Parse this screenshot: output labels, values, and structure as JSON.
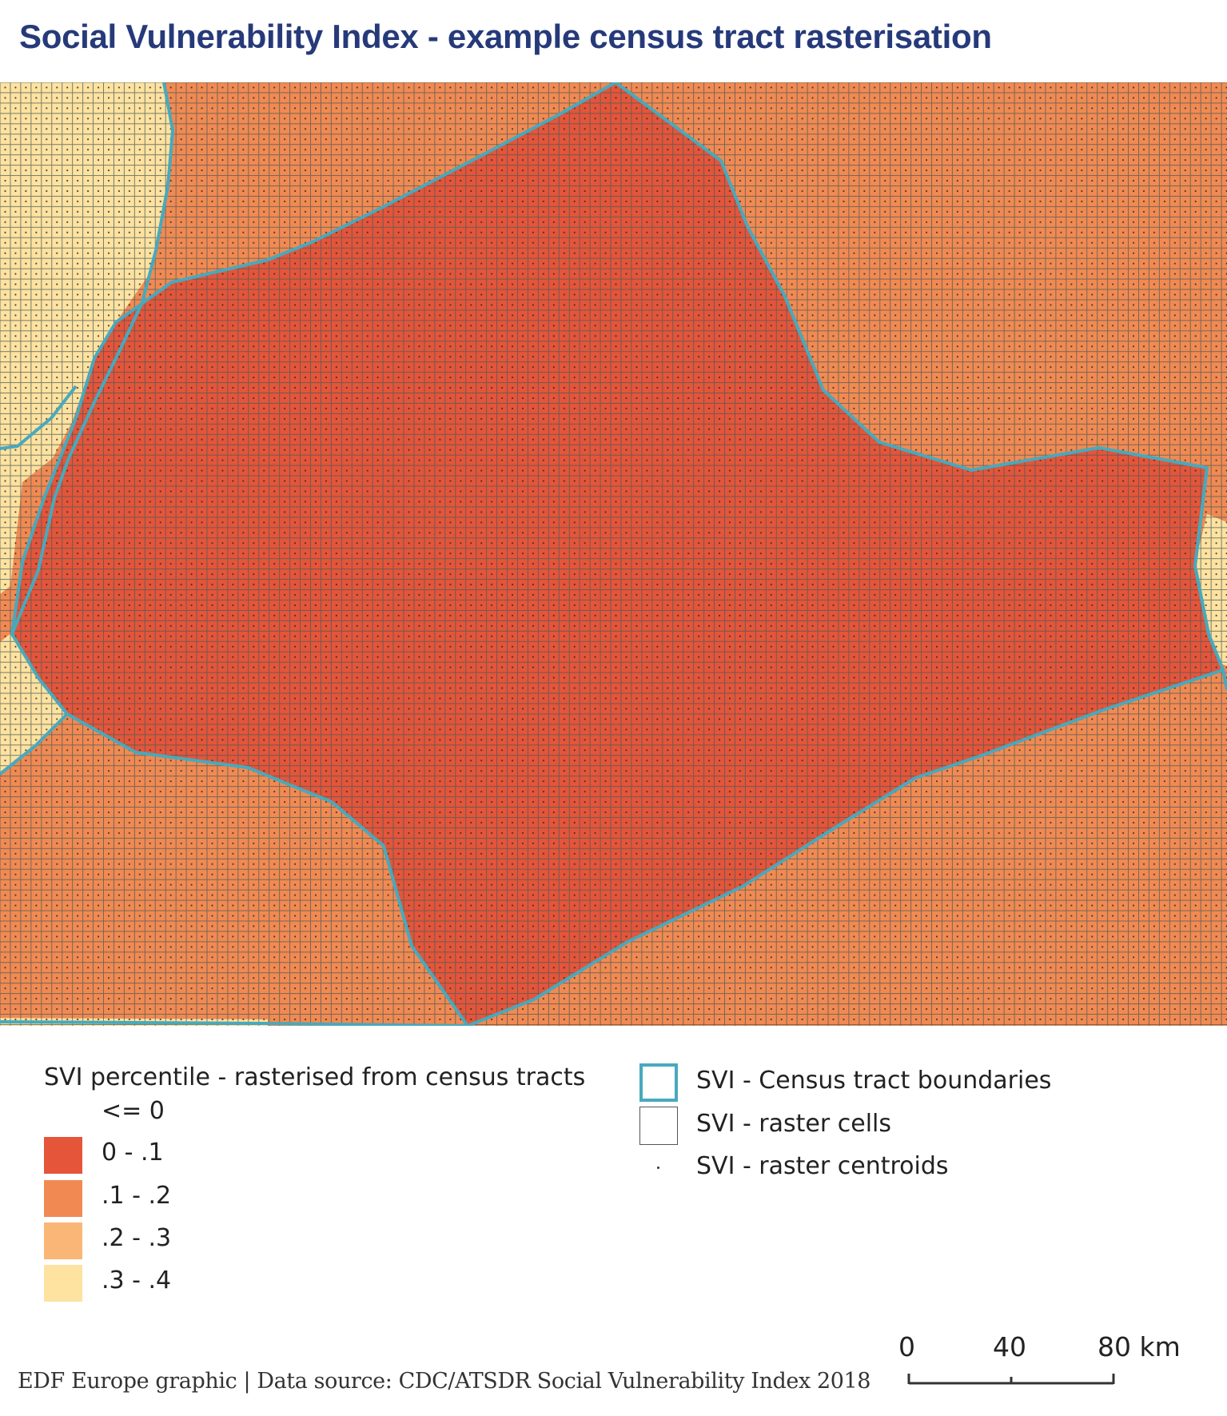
{
  "title": "Social Vulnerability Index - example census tract rasterisation",
  "colors": {
    "class_0_01": "#e4553a",
    "class_01_02": "#f18a52",
    "class_02_03": "#f9b677",
    "class_03_04": "#fde2a0",
    "boundary": "#48a9bd",
    "grid_line": "#4a5a5a",
    "title": "#263a7a"
  },
  "map": {
    "layers": [
      "SVI percentile raster",
      "SVI raster cells grid",
      "SVI raster centroids",
      "SVI census tract boundaries"
    ]
  },
  "legend": {
    "title": "SVI percentile - rasterised from census tracts",
    "first_entry": "<= 0",
    "classes": [
      {
        "label": "0 - .1",
        "color": "#e4553a"
      },
      {
        "label": ".1 - .2",
        "color": "#f18a52"
      },
      {
        "label": ".2 - .3",
        "color": "#f9b677"
      },
      {
        "label": ".3 - .4",
        "color": "#fde2a0"
      }
    ]
  },
  "layers_legend": [
    {
      "label": "SVI - Census tract boundaries",
      "symbol": "boundary-outline"
    },
    {
      "label": "SVI - raster cells",
      "symbol": "cell-outline"
    },
    {
      "label": "SVI - raster centroids",
      "symbol": "centroid-dot"
    }
  ],
  "scale": {
    "labels": [
      "0",
      "40",
      "80 km"
    ]
  },
  "footer": "EDF Europe graphic | Data source: CDC/ATSDR Social Vulnerability Index 2018"
}
